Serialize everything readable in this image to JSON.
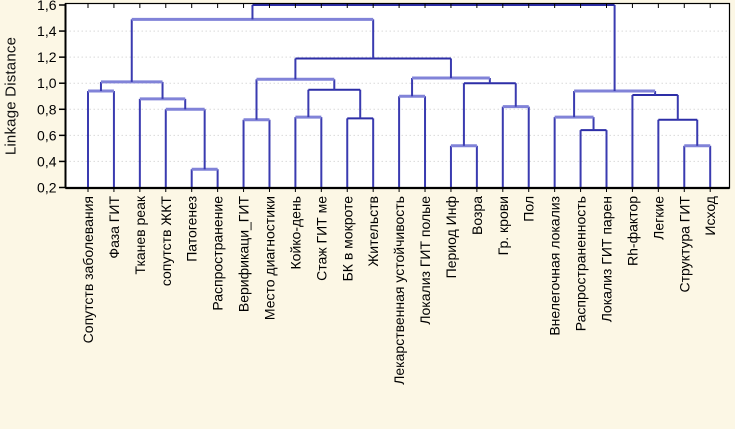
{
  "chart_data": {
    "type": "dendrogram",
    "title": "",
    "ylabel": "Linkage Distance",
    "ylim": [
      0.2,
      1.6
    ],
    "ytick_labels": [
      "1,6",
      "1,4",
      "1,2",
      "1,0",
      "0,8",
      "0,6",
      "0,4",
      "0,2"
    ],
    "ytick_values": [
      1.6,
      1.4,
      1.2,
      1.0,
      0.8,
      0.6,
      0.4,
      0.2
    ],
    "grid": "horizontal-dashed",
    "legend": "none",
    "colors": {
      "background": "#fcf7e5",
      "plot_background": "#ffffff",
      "gridline": "#d9d9d9",
      "axis": "#000000",
      "link_light": "#8183d8",
      "link_dark": "#2d2ea7",
      "link_vertical": "#3a3bb0",
      "label_text": "#000000"
    },
    "leaves": [
      "Сопутств заболевания",
      "Фаза ГИТ",
      "Тканев реак",
      "сопутств ЖКТ",
      "Патогенез",
      "Распространение",
      "Верификаци_ГИТ",
      "Место диагностики",
      "Койко-день",
      "Стаж ГИТ ме",
      "БК в мокроте",
      "Жительств",
      "Лекарственная устойчивость",
      "Локализ ГИТ полые",
      "Период Инф",
      "Возра",
      "Гр. крови",
      "Пол",
      "Внелегочная локализ",
      "Распространенность",
      "Локализ ГИТ парен",
      "Rh-фактор",
      "Легкие",
      "Структура ГИТ",
      "Исход"
    ],
    "linkage_tree": {
      "h": 1.6,
      "s": "dark",
      "c": [
        {
          "h": 1.49,
          "s": "light",
          "c": [
            {
              "h": 1.01,
              "s": "light",
              "c": [
                {
                  "h": 0.94,
                  "s": "light",
                  "c": [
                    0,
                    1
                  ]
                },
                {
                  "h": 0.88,
                  "s": "light",
                  "c": [
                    2,
                    {
                      "h": 0.8,
                      "s": "light",
                      "c": [
                        3,
                        {
                          "h": 0.34,
                          "s": "light",
                          "c": [
                            4,
                            5
                          ]
                        }
                      ]
                    }
                  ]
                }
              ]
            },
            {
              "h": 1.19,
              "s": "dark",
              "c": [
                {
                  "h": 1.03,
                  "s": "light",
                  "c": [
                    {
                      "h": 0.72,
                      "s": "light",
                      "c": [
                        6,
                        7
                      ]
                    },
                    {
                      "h": 0.95,
                      "s": "dark",
                      "c": [
                        {
                          "h": 0.74,
                          "s": "light",
                          "c": [
                            8,
                            9
                          ]
                        },
                        {
                          "h": 0.73,
                          "s": "dark",
                          "c": [
                            10,
                            11
                          ]
                        }
                      ]
                    }
                  ]
                },
                {
                  "h": 1.04,
                  "s": "light",
                  "c": [
                    {
                      "h": 0.9,
                      "s": "light",
                      "c": [
                        12,
                        13
                      ]
                    },
                    {
                      "h": 1.0,
                      "s": "dark",
                      "c": [
                        {
                          "h": 0.52,
                          "s": "light",
                          "c": [
                            14,
                            15
                          ]
                        },
                        {
                          "h": 0.82,
                          "s": "light",
                          "c": [
                            16,
                            17
                          ]
                        }
                      ]
                    }
                  ]
                }
              ]
            }
          ]
        },
        {
          "h": 0.94,
          "s": "light",
          "c": [
            {
              "h": 0.74,
              "s": "light",
              "c": [
                18,
                {
                  "h": 0.64,
                  "s": "dark",
                  "c": [
                    19,
                    20
                  ]
                }
              ]
            },
            {
              "h": 0.91,
              "s": "dark",
              "c": [
                21,
                {
                  "h": 0.72,
                  "s": "dark",
                  "c": [
                    22,
                    {
                      "h": 0.52,
                      "s": "light",
                      "c": [
                        23,
                        24
                      ]
                    }
                  ]
                }
              ]
            }
          ]
        }
      ]
    }
  }
}
